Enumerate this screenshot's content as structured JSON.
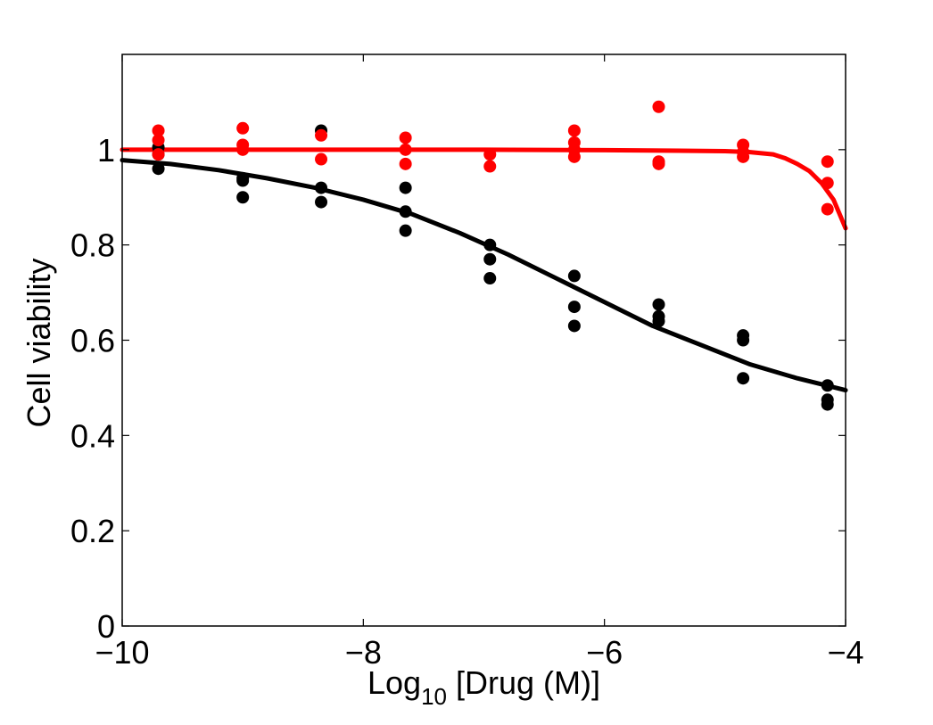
{
  "chart_data": {
    "type": "scatter",
    "title": "",
    "xlabel": {
      "prefix": "Log",
      "subscript": "10",
      "suffix": " [Drug (M)]"
    },
    "ylabel": "Cell viability",
    "xlim": [
      -10,
      -4
    ],
    "ylim": [
      0,
      1.2
    ],
    "xticks": [
      -10,
      -8,
      -6,
      -4
    ],
    "xtick_labels": [
      "−10",
      "−8",
      "−6",
      "−4"
    ],
    "yticks": [
      0,
      0.2,
      0.4,
      0.6,
      0.8,
      1
    ],
    "ytick_labels": [
      "0",
      "0.2",
      "0.4",
      "0.6",
      "0.8",
      "1"
    ],
    "grid": false,
    "legend": "none",
    "series": [
      {
        "color": "#000000",
        "points": [
          [
            -9.7,
            0.96
          ],
          [
            -9.7,
            0.99
          ],
          [
            -9.7,
            1.005
          ],
          [
            -9.0,
            0.9
          ],
          [
            -9.0,
            0.935
          ],
          [
            -9.0,
            0.94
          ],
          [
            -8.35,
            0.89
          ],
          [
            -8.35,
            0.92
          ],
          [
            -8.35,
            1.04
          ],
          [
            -7.65,
            0.83
          ],
          [
            -7.65,
            0.87
          ],
          [
            -7.65,
            0.92
          ],
          [
            -6.95,
            0.73
          ],
          [
            -6.95,
            0.77
          ],
          [
            -6.95,
            0.8
          ],
          [
            -6.25,
            0.63
          ],
          [
            -6.25,
            0.67
          ],
          [
            -6.25,
            0.735
          ],
          [
            -5.55,
            0.64
          ],
          [
            -5.55,
            0.65
          ],
          [
            -5.55,
            0.675
          ],
          [
            -4.85,
            0.52
          ],
          [
            -4.85,
            0.6
          ],
          [
            -4.85,
            0.61
          ],
          [
            -4.15,
            0.465
          ],
          [
            -4.15,
            0.475
          ],
          [
            -4.15,
            0.505
          ]
        ],
        "fit": [
          [
            -10.0,
            0.978
          ],
          [
            -9.6,
            0.97
          ],
          [
            -9.2,
            0.957
          ],
          [
            -8.8,
            0.94
          ],
          [
            -8.4,
            0.92
          ],
          [
            -8.0,
            0.895
          ],
          [
            -7.6,
            0.865
          ],
          [
            -7.2,
            0.825
          ],
          [
            -6.8,
            0.78
          ],
          [
            -6.4,
            0.73
          ],
          [
            -6.0,
            0.68
          ],
          [
            -5.6,
            0.63
          ],
          [
            -5.2,
            0.59
          ],
          [
            -4.8,
            0.55
          ],
          [
            -4.4,
            0.52
          ],
          [
            -4.0,
            0.495
          ]
        ]
      },
      {
        "color": "#ff0000",
        "points": [
          [
            -9.7,
            0.99
          ],
          [
            -9.7,
            1.02
          ],
          [
            -9.7,
            1.04
          ],
          [
            -9.0,
            1.0
          ],
          [
            -9.0,
            1.01
          ],
          [
            -9.0,
            1.045
          ],
          [
            -8.35,
            0.98
          ],
          [
            -8.35,
            1.03
          ],
          [
            -7.65,
            0.97
          ],
          [
            -7.65,
            1.0
          ],
          [
            -7.65,
            1.025
          ],
          [
            -6.95,
            0.965
          ],
          [
            -6.95,
            0.99
          ],
          [
            -6.25,
            0.985
          ],
          [
            -6.25,
            1.0
          ],
          [
            -6.25,
            1.015
          ],
          [
            -6.25,
            1.04
          ],
          [
            -5.55,
            0.97
          ],
          [
            -5.55,
            0.975
          ],
          [
            -5.55,
            1.09
          ],
          [
            -4.85,
            0.985
          ],
          [
            -4.85,
            0.995
          ],
          [
            -4.85,
            1.01
          ],
          [
            -4.15,
            0.875
          ],
          [
            -4.15,
            0.93
          ],
          [
            -4.15,
            0.975
          ]
        ],
        "fit": [
          [
            -10.0,
            1.0
          ],
          [
            -9.0,
            1.0
          ],
          [
            -8.0,
            1.0
          ],
          [
            -7.0,
            1.0
          ],
          [
            -6.0,
            0.999
          ],
          [
            -5.0,
            0.997
          ],
          [
            -4.8,
            0.995
          ],
          [
            -4.6,
            0.99
          ],
          [
            -4.5,
            0.982
          ],
          [
            -4.4,
            0.97
          ],
          [
            -4.3,
            0.955
          ],
          [
            -4.2,
            0.93
          ],
          [
            -4.1,
            0.895
          ],
          [
            -4.0,
            0.835
          ]
        ]
      }
    ]
  }
}
